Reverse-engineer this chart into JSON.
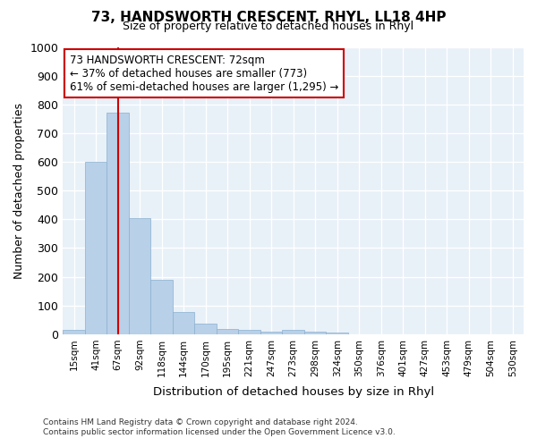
{
  "title": "73, HANDSWORTH CRESCENT, RHYL, LL18 4HP",
  "subtitle": "Size of property relative to detached houses in Rhyl",
  "xlabel": "Distribution of detached houses by size in Rhyl",
  "ylabel": "Number of detached properties",
  "bar_color": "#b8d0e8",
  "bar_edge_color": "#8ab0d0",
  "background_color": "#e8f0f8",
  "grid_color": "#ffffff",
  "fig_facecolor": "#ffffff",
  "categories": [
    "15sqm",
    "41sqm",
    "67sqm",
    "92sqm",
    "118sqm",
    "144sqm",
    "170sqm",
    "195sqm",
    "221sqm",
    "247sqm",
    "273sqm",
    "298sqm",
    "324sqm",
    "350sqm",
    "376sqm",
    "401sqm",
    "427sqm",
    "453sqm",
    "479sqm",
    "504sqm",
    "530sqm"
  ],
  "values": [
    15,
    600,
    770,
    405,
    190,
    78,
    38,
    18,
    15,
    10,
    15,
    8,
    5,
    0,
    0,
    0,
    0,
    0,
    0,
    0,
    0
  ],
  "ylim": [
    0,
    1000
  ],
  "yticks": [
    0,
    100,
    200,
    300,
    400,
    500,
    600,
    700,
    800,
    900,
    1000
  ],
  "annotation_text": "73 HANDSWORTH CRESCENT: 72sqm\n← 37% of detached houses are smaller (773)\n61% of semi-detached houses are larger (1,295) →",
  "annotation_box_facecolor": "#ffffff",
  "annotation_box_edgecolor": "#cc0000",
  "footer_text": "Contains HM Land Registry data © Crown copyright and database right 2024.\nContains public sector information licensed under the Open Government Licence v3.0.",
  "vline_color": "#cc0000",
  "vline_x_index": 2
}
